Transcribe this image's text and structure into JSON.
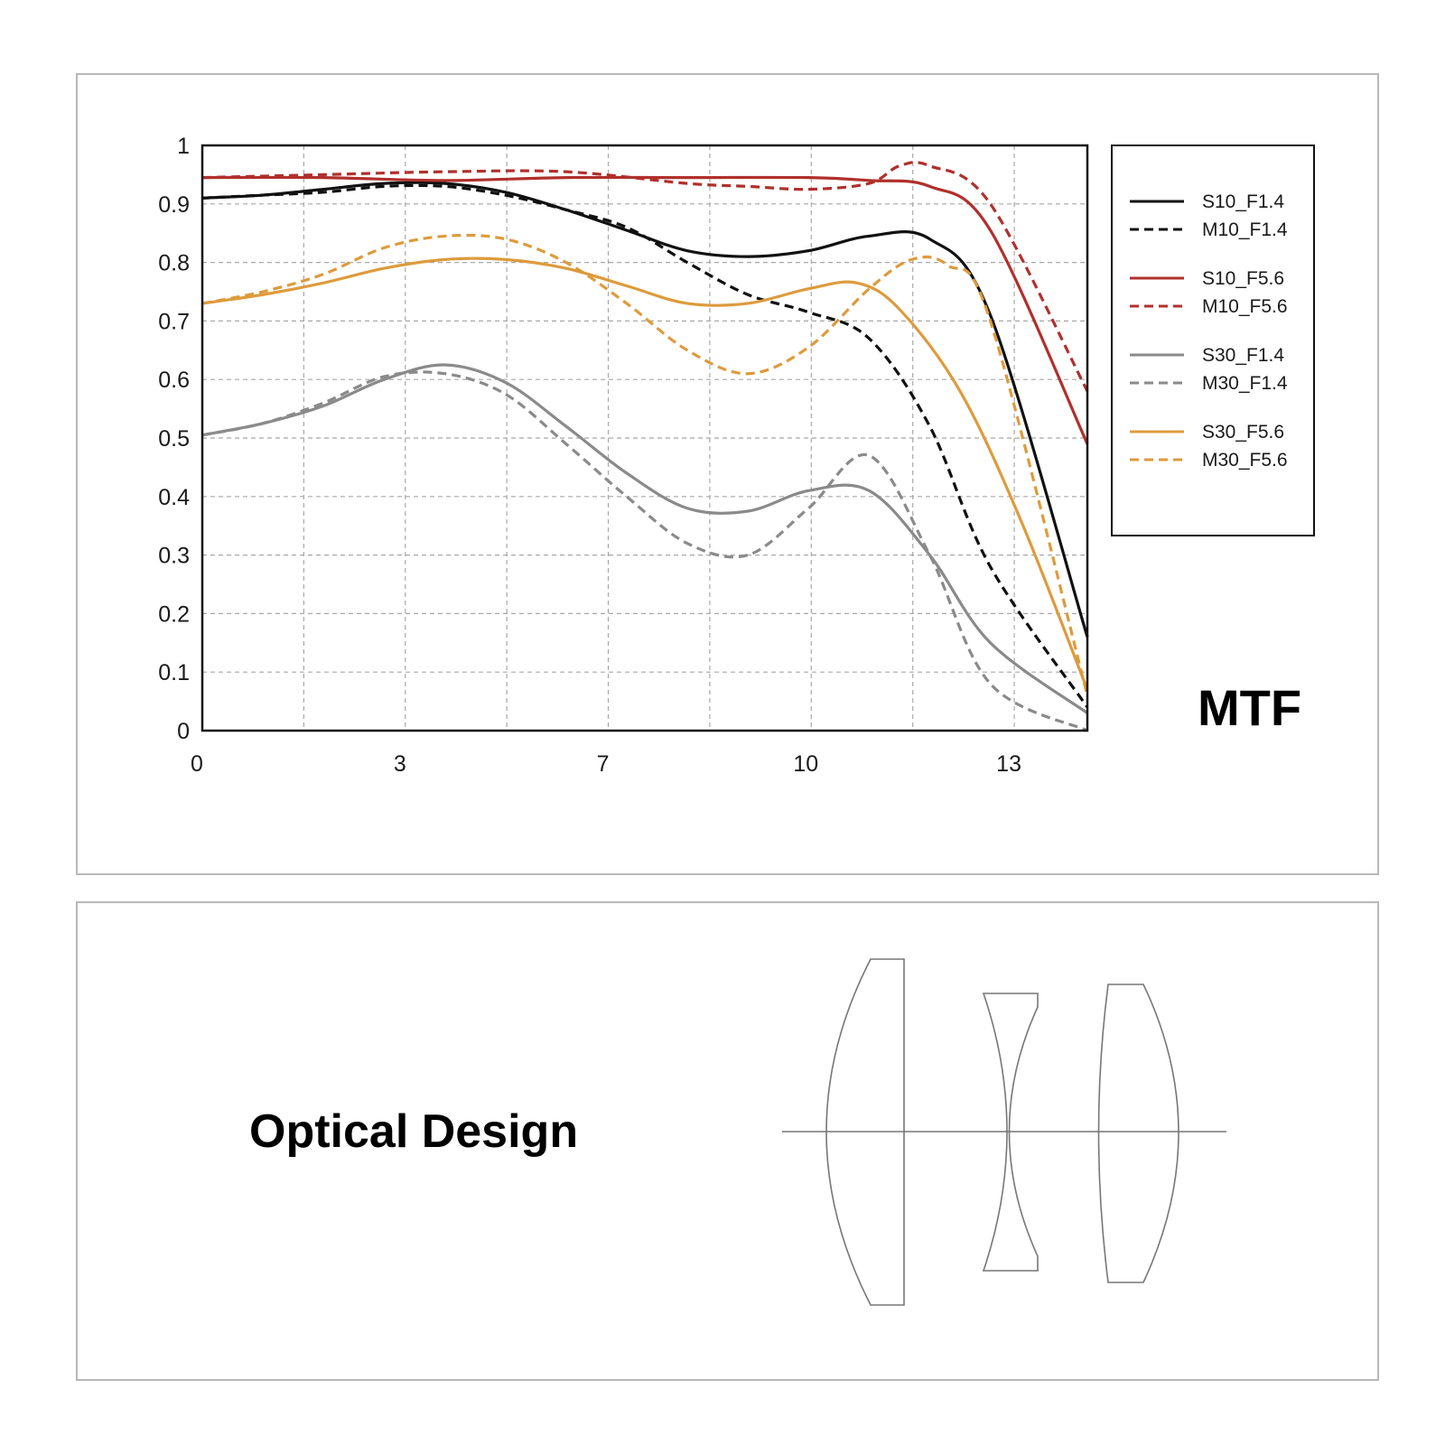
{
  "mtf_title": "MTF",
  "optical_title": "Optical Design",
  "colors": {
    "black": "#111111",
    "red": "#b0302c",
    "gray": "#8a8a8a",
    "orange": "#dd9b3c",
    "grid": "#a8a8a8"
  },
  "chart_data": {
    "type": "line",
    "title": "MTF",
    "xlabel": "",
    "ylabel": "",
    "xlim": [
      0,
      14.6
    ],
    "ylim": [
      0,
      1
    ],
    "x_ticks": [
      "0",
      "3",
      "7",
      "10",
      "13"
    ],
    "y_ticks": [
      "0",
      "0.1",
      "0.2",
      "0.3",
      "0.4",
      "0.5",
      "0.6",
      "0.7",
      "0.8",
      "0.9",
      "1"
    ],
    "grid": true,
    "legend_position": "right",
    "series": [
      {
        "name": "S10_F1.4",
        "color": "black",
        "dash": false,
        "x": [
          0,
          1,
          2,
          3,
          4,
          5,
          6,
          7,
          8,
          9,
          10,
          11,
          12,
          13,
          14.6
        ],
        "y": [
          0.91,
          0.915,
          0.925,
          0.935,
          0.935,
          0.92,
          0.89,
          0.855,
          0.82,
          0.81,
          0.82,
          0.845,
          0.84,
          0.71,
          0.16
        ]
      },
      {
        "name": "M10_F1.4",
        "color": "black",
        "dash": true,
        "x": [
          0,
          1,
          2,
          3,
          4,
          5,
          6,
          7,
          8,
          9,
          10,
          11,
          12,
          13,
          14.6
        ],
        "y": [
          0.91,
          0.915,
          0.92,
          0.93,
          0.93,
          0.915,
          0.89,
          0.86,
          0.8,
          0.745,
          0.715,
          0.67,
          0.52,
          0.28,
          0.04
        ]
      },
      {
        "name": "S10_F5.6",
        "color": "red",
        "dash": false,
        "x": [
          0,
          2,
          4,
          6,
          8,
          10,
          11,
          12,
          13,
          14.6
        ],
        "y": [
          0.945,
          0.945,
          0.94,
          0.945,
          0.945,
          0.945,
          0.94,
          0.93,
          0.855,
          0.49
        ]
      },
      {
        "name": "M10_F5.6",
        "color": "red",
        "dash": true,
        "x": [
          0,
          2,
          4,
          6,
          8,
          9,
          10,
          11,
          11.5,
          12,
          13,
          14.6
        ],
        "y": [
          0.945,
          0.95,
          0.955,
          0.955,
          0.935,
          0.93,
          0.925,
          0.935,
          0.965,
          0.965,
          0.9,
          0.58
        ]
      },
      {
        "name": "S30_F1.4",
        "color": "gray",
        "dash": false,
        "x": [
          0,
          1,
          2,
          3,
          4,
          5,
          6,
          7,
          8,
          9,
          10,
          11,
          12,
          13,
          14.6
        ],
        "y": [
          0.505,
          0.525,
          0.555,
          0.6,
          0.625,
          0.595,
          0.52,
          0.44,
          0.38,
          0.375,
          0.41,
          0.41,
          0.3,
          0.15,
          0.03
        ]
      },
      {
        "name": "M30_F1.4",
        "color": "gray",
        "dash": true,
        "x": [
          0,
          1,
          2,
          3,
          4,
          5,
          6,
          7,
          8,
          9,
          10,
          11,
          12,
          13,
          14.6
        ],
        "y": [
          0.505,
          0.525,
          0.56,
          0.605,
          0.61,
          0.575,
          0.49,
          0.4,
          0.32,
          0.3,
          0.38,
          0.47,
          0.3,
          0.08,
          0.0
        ]
      },
      {
        "name": "S30_F5.6",
        "color": "orange",
        "dash": false,
        "x": [
          0,
          1,
          2,
          3,
          4,
          5,
          6,
          7,
          8,
          9,
          10,
          10.8,
          11.5,
          12.5,
          13.5,
          14.6
        ],
        "y": [
          0.73,
          0.745,
          0.765,
          0.79,
          0.805,
          0.805,
          0.79,
          0.76,
          0.73,
          0.73,
          0.755,
          0.765,
          0.72,
          0.58,
          0.36,
          0.07
        ]
      },
      {
        "name": "M30_F5.6",
        "color": "orange",
        "dash": true,
        "x": [
          0,
          1,
          2,
          3,
          4,
          5,
          6,
          7,
          8,
          9,
          10,
          11,
          11.7,
          12.3,
          13,
          14.6
        ],
        "y": [
          0.73,
          0.75,
          0.78,
          0.825,
          0.845,
          0.84,
          0.8,
          0.73,
          0.65,
          0.61,
          0.655,
          0.755,
          0.805,
          0.795,
          0.7,
          0.06
        ]
      }
    ]
  }
}
